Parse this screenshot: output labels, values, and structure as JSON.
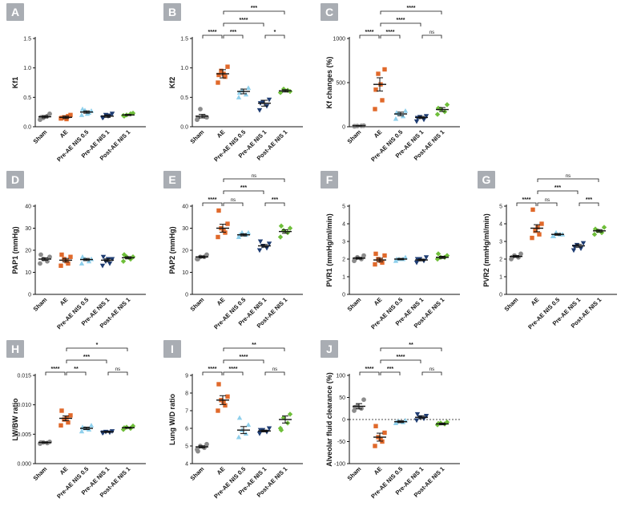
{
  "panel_letters": [
    "A",
    "B",
    "C",
    "D",
    "E",
    "F",
    "G",
    "H",
    "I",
    "J"
  ],
  "colors": {
    "Sham": "#8c8c8c",
    "AE": "#e0692b",
    "Pre-AE NIS 0.5": "#8fd0ec",
    "Pre-AE NIS 1": "#1f3d73",
    "Post-AE NIS 1": "#6fbf3a",
    "badge": "#a9adb3"
  },
  "markers": [
    "circle",
    "square",
    "triangle",
    "triangle-down",
    "diamond"
  ],
  "chart_data": [
    {
      "type": "scatter",
      "panel": "A",
      "ylabel": "Kf1",
      "ylim": [
        0,
        1.5
      ],
      "yticks": [
        "0.0",
        "0.5",
        "1.0",
        "1.5"
      ],
      "ytick_values": [
        0,
        0.5,
        1.0,
        1.5
      ],
      "categories": [
        "Sham",
        "AE",
        "Pre-AE NIS 0.5",
        "Pre-AE NIS 1",
        "Post-AE NIS 1"
      ],
      "points": [
        [
          0.12,
          0.18,
          0.15,
          0.22,
          0.16
        ],
        [
          0.14,
          0.18,
          0.16,
          0.2,
          0.15,
          0.13
        ],
        [
          0.2,
          0.24,
          0.28,
          0.27,
          0.3,
          0.22
        ],
        [
          0.15,
          0.19,
          0.2,
          0.22,
          0.16,
          0.18
        ],
        [
          0.19,
          0.22,
          0.2,
          0.23,
          0.18
        ]
      ],
      "means": [
        0.17,
        0.16,
        0.25,
        0.18,
        0.2
      ],
      "sems": [
        0.02,
        0.02,
        0.02,
        0.02,
        0.01
      ],
      "comparisons": []
    },
    {
      "type": "scatter",
      "panel": "B",
      "ylabel": "Kf2",
      "ylim": [
        0,
        1.5
      ],
      "yticks": [
        "0.0",
        "0.5",
        "1.0",
        "1.5"
      ],
      "ytick_values": [
        0,
        0.5,
        1.0,
        1.5
      ],
      "categories": [
        "Sham",
        "AE",
        "Pre-AE NIS 0.5",
        "Pre-AE NIS 1",
        "Post-AE NIS 1"
      ],
      "points": [
        [
          0.12,
          0.18,
          0.3,
          0.16,
          0.15
        ],
        [
          0.75,
          0.85,
          0.95,
          1.02,
          0.88,
          0.9
        ],
        [
          0.5,
          0.55,
          0.62,
          0.66,
          0.58
        ],
        [
          0.28,
          0.35,
          0.42,
          0.46,
          0.4
        ],
        [
          0.58,
          0.62,
          0.64,
          0.6
        ]
      ],
      "means": [
        0.18,
        0.9,
        0.6,
        0.4,
        0.61
      ],
      "sems": [
        0.03,
        0.07,
        0.04,
        0.05,
        0.02
      ],
      "comparisons": [
        {
          "from": 0,
          "to": 1,
          "level": 1,
          "label": "****"
        },
        {
          "from": 1,
          "to": 2,
          "level": 1,
          "label": "***"
        },
        {
          "from": 3,
          "to": 4,
          "level": 1,
          "label": "*"
        },
        {
          "from": 1,
          "to": 3,
          "level": 2,
          "label": "****"
        },
        {
          "from": 1,
          "to": 4,
          "level": 3,
          "label": "***"
        }
      ]
    },
    {
      "type": "scatter",
      "panel": "C",
      "ylabel": "Kf changes (%)",
      "ylim": [
        0,
        1000
      ],
      "yticks": [
        "0",
        "500",
        "1000"
      ],
      "ytick_values": [
        0,
        500,
        1000
      ],
      "categories": [
        "Sham",
        "AE",
        "Pre-AE NIS 0.5",
        "Pre-AE NIS 1",
        "Post-AE NIS 1"
      ],
      "points": [
        [
          5,
          10,
          8,
          12,
          6
        ],
        [
          200,
          300,
          600,
          650,
          420,
          480
        ],
        [
          90,
          120,
          150,
          180,
          160
        ],
        [
          60,
          80,
          110,
          120,
          100
        ],
        [
          140,
          170,
          200,
          250,
          210
        ]
      ],
      "means": [
        10,
        480,
        145,
        105,
        195
      ],
      "sems": [
        3,
        75,
        20,
        12,
        22
      ],
      "comparisons": [
        {
          "from": 0,
          "to": 1,
          "level": 1,
          "label": "****"
        },
        {
          "from": 1,
          "to": 2,
          "level": 1,
          "label": "****"
        },
        {
          "from": 3,
          "to": 4,
          "level": 1,
          "label": "ns"
        },
        {
          "from": 1,
          "to": 3,
          "level": 2,
          "label": "****"
        },
        {
          "from": 1,
          "to": 4,
          "level": 3,
          "label": "****"
        }
      ]
    },
    {
      "type": "scatter",
      "panel": "D",
      "ylabel": "PAP1 (mmHg)",
      "ylim": [
        0,
        40
      ],
      "yticks": [
        "0",
        "10",
        "20",
        "30",
        "40"
      ],
      "ytick_values": [
        0,
        10,
        20,
        30,
        40
      ],
      "categories": [
        "Sham",
        "AE",
        "Pre-AE NIS 0.5",
        "Pre-AE NIS 1",
        "Post-AE NIS 1"
      ],
      "points": [
        [
          14,
          15,
          16,
          17,
          18
        ],
        [
          13,
          14,
          16,
          17,
          18,
          15
        ],
        [
          14,
          15,
          16,
          16,
          17
        ],
        [
          13,
          14,
          15,
          16,
          17,
          16
        ],
        [
          15,
          16,
          17,
          17,
          18
        ]
      ],
      "means": [
        16,
        15.5,
        15.8,
        15.5,
        16.6
      ],
      "sems": [
        0.6,
        0.8,
        0.5,
        0.6,
        0.5
      ],
      "comparisons": []
    },
    {
      "type": "scatter",
      "panel": "E",
      "ylabel": "PAP2 (mmHg)",
      "ylim": [
        0,
        40
      ],
      "yticks": [
        "0",
        "10",
        "20",
        "30",
        "40"
      ],
      "ytick_values": [
        0,
        10,
        20,
        30,
        40
      ],
      "categories": [
        "Sham",
        "AE",
        "Pre-AE NIS 0.5",
        "Pre-AE NIS 1",
        "Post-AE NIS 1"
      ],
      "points": [
        [
          16,
          17,
          17,
          18,
          16
        ],
        [
          26,
          28,
          30,
          32,
          38,
          29
        ],
        [
          26,
          27,
          28,
          28,
          27
        ],
        [
          20,
          21,
          22,
          23,
          24
        ],
        [
          26,
          28,
          29,
          30,
          31
        ]
      ],
      "means": [
        17,
        30,
        27,
        22,
        28.5
      ],
      "sems": [
        0.4,
        1.8,
        0.5,
        0.6,
        0.8
      ],
      "comparisons": [
        {
          "from": 0,
          "to": 1,
          "level": 1,
          "label": "****"
        },
        {
          "from": 1,
          "to": 2,
          "level": 1,
          "label": "ns"
        },
        {
          "from": 3,
          "to": 4,
          "level": 1,
          "label": "***"
        },
        {
          "from": 1,
          "to": 3,
          "level": 2,
          "label": "***"
        },
        {
          "from": 1,
          "to": 4,
          "level": 3,
          "label": "ns"
        }
      ]
    },
    {
      "type": "scatter",
      "panel": "F",
      "ylabel": "PVR1 (mmHg/ml/min)",
      "ylim": [
        0,
        5
      ],
      "yticks": [
        "0",
        "1",
        "2",
        "3",
        "4",
        "5"
      ],
      "ytick_values": [
        0,
        1,
        2,
        3,
        4,
        5
      ],
      "categories": [
        "Sham",
        "AE",
        "Pre-AE NIS 0.5",
        "Pre-AE NIS 1",
        "Post-AE NIS 1"
      ],
      "points": [
        [
          1.9,
          2.0,
          2.1,
          2.2,
          2.0
        ],
        [
          1.7,
          1.8,
          2.0,
          2.2,
          2.3,
          1.9
        ],
        [
          1.9,
          2.0,
          2.0,
          2.1,
          2.0
        ],
        [
          1.8,
          1.9,
          2.0,
          2.1,
          2.0
        ],
        [
          2.0,
          2.1,
          2.1,
          2.2,
          2.3
        ]
      ],
      "means": [
        2.05,
        1.95,
        2.0,
        1.95,
        2.1
      ],
      "sems": [
        0.05,
        0.1,
        0.04,
        0.05,
        0.06
      ],
      "comparisons": []
    },
    {
      "type": "scatter",
      "panel": "G",
      "ylabel": "PVR2 (mmHg/ml/min)",
      "ylim": [
        0,
        5
      ],
      "yticks": [
        "0",
        "1",
        "2",
        "3",
        "4",
        "5"
      ],
      "ytick_values": [
        0,
        1,
        2,
        3,
        4,
        5
      ],
      "categories": [
        "Sham",
        "AE",
        "Pre-AE NIS 0.5",
        "Pre-AE NIS 1",
        "Post-AE NIS 1"
      ],
      "points": [
        [
          2.0,
          2.1,
          2.2,
          2.3,
          2.1
        ],
        [
          3.2,
          3.4,
          3.6,
          4.0,
          4.8,
          3.8
        ],
        [
          3.3,
          3.4,
          3.5,
          3.4,
          3.3
        ],
        [
          2.5,
          2.6,
          2.8,
          2.9,
          2.7
        ],
        [
          3.4,
          3.5,
          3.6,
          3.8,
          3.7
        ]
      ],
      "means": [
        2.15,
        3.75,
        3.4,
        2.75,
        3.6
      ],
      "sems": [
        0.05,
        0.2,
        0.05,
        0.08,
        0.07
      ],
      "comparisons": [
        {
          "from": 0,
          "to": 1,
          "level": 1,
          "label": "****"
        },
        {
          "from": 1,
          "to": 2,
          "level": 1,
          "label": "ns"
        },
        {
          "from": 3,
          "to": 4,
          "level": 1,
          "label": "***"
        },
        {
          "from": 1,
          "to": 3,
          "level": 2,
          "label": "***"
        },
        {
          "from": 1,
          "to": 4,
          "level": 3,
          "label": "ns"
        }
      ]
    },
    {
      "type": "scatter",
      "panel": "H",
      "ylabel": "LW/BW ratio",
      "ylim": [
        0,
        0.015
      ],
      "yticks": [
        "0.000",
        "0.005",
        "0.010",
        "0.015"
      ],
      "ytick_values": [
        0,
        0.005,
        0.01,
        0.015
      ],
      "categories": [
        "Sham",
        "AE",
        "Pre-AE NIS 0.5",
        "Pre-AE NIS 1",
        "Post-AE NIS 1"
      ],
      "points": [
        [
          0.0034,
          0.0035,
          0.0036,
          0.0037,
          0.0036
        ],
        [
          0.0065,
          0.007,
          0.0075,
          0.0082,
          0.009,
          0.0078
        ],
        [
          0.0055,
          0.0058,
          0.006,
          0.0065,
          0.0062
        ],
        [
          0.0052,
          0.0053,
          0.0054,
          0.0055,
          0.0053
        ],
        [
          0.0058,
          0.006,
          0.0062,
          0.0064,
          0.0061
        ]
      ],
      "means": [
        0.0036,
        0.0077,
        0.006,
        0.0054,
        0.0061
      ],
      "sems": [
        0.0001,
        0.0004,
        0.0002,
        0.0001,
        0.0001
      ],
      "comparisons": [
        {
          "from": 0,
          "to": 1,
          "level": 1,
          "label": "****"
        },
        {
          "from": 1,
          "to": 2,
          "level": 1,
          "label": "**"
        },
        {
          "from": 3,
          "to": 4,
          "level": 1,
          "label": "ns"
        },
        {
          "from": 1,
          "to": 3,
          "level": 2,
          "label": "***"
        },
        {
          "from": 1,
          "to": 4,
          "level": 3,
          "label": "*"
        }
      ]
    },
    {
      "type": "scatter",
      "panel": "I",
      "ylabel": "Lung W/D ratio",
      "ylim": [
        4,
        9
      ],
      "yticks": [
        "4",
        "5",
        "6",
        "7",
        "8",
        "9"
      ],
      "ytick_values": [
        4,
        5,
        6,
        7,
        8,
        9
      ],
      "categories": [
        "Sham",
        "AE",
        "Pre-AE NIS 0.5",
        "Pre-AE NIS 1",
        "Post-AE NIS 1"
      ],
      "points": [
        [
          4.8,
          4.9,
          5.0,
          5.1,
          4.7
        ],
        [
          7.0,
          7.3,
          7.6,
          7.8,
          8.5,
          7.5
        ],
        [
          5.5,
          5.7,
          5.9,
          6.2,
          6.6
        ],
        [
          5.7,
          5.8,
          5.9,
          6.0,
          5.9
        ],
        [
          6.0,
          6.3,
          6.6,
          6.8,
          5.9
        ]
      ],
      "means": [
        4.95,
        7.6,
        5.9,
        5.85,
        6.5
      ],
      "sems": [
        0.06,
        0.25,
        0.2,
        0.05,
        0.2
      ],
      "comparisons": [
        {
          "from": 0,
          "to": 1,
          "level": 1,
          "label": "****"
        },
        {
          "from": 1,
          "to": 2,
          "level": 1,
          "label": "****"
        },
        {
          "from": 3,
          "to": 4,
          "level": 1,
          "label": "ns"
        },
        {
          "from": 1,
          "to": 3,
          "level": 2,
          "label": "****"
        },
        {
          "from": 1,
          "to": 4,
          "level": 3,
          "label": "**"
        }
      ]
    },
    {
      "type": "scatter",
      "panel": "J",
      "ylabel": "Alveolar fluid clearance (%)",
      "ylim": [
        -100,
        100
      ],
      "yticks": [
        "-100",
        "-50",
        "0",
        "50",
        "100"
      ],
      "ytick_values": [
        -100,
        -50,
        0,
        50,
        100
      ],
      "ref_line": 0,
      "categories": [
        "Sham",
        "AE",
        "Pre-AE NIS 0.5",
        "Pre-AE NIS 1",
        "Post-AE NIS 1"
      ],
      "points": [
        [
          20,
          25,
          30,
          45,
          28
        ],
        [
          -60,
          -50,
          -40,
          -30,
          -15,
          -45
        ],
        [
          -8,
          -6,
          -4,
          -2,
          -5
        ],
        [
          -2,
          2,
          5,
          8,
          12
        ],
        [
          -12,
          -10,
          -8,
          -6,
          -9
        ]
      ],
      "means": [
        30,
        -40,
        -5,
        5,
        -10
      ],
      "sems": [
        6,
        9,
        2,
        3,
        2
      ],
      "comparisons": [
        {
          "from": 0,
          "to": 1,
          "level": 1,
          "label": "****"
        },
        {
          "from": 1,
          "to": 2,
          "level": 1,
          "label": "***"
        },
        {
          "from": 3,
          "to": 4,
          "level": 1,
          "label": "ns"
        },
        {
          "from": 1,
          "to": 3,
          "level": 2,
          "label": "****"
        },
        {
          "from": 1,
          "to": 4,
          "level": 3,
          "label": "**"
        }
      ]
    }
  ]
}
